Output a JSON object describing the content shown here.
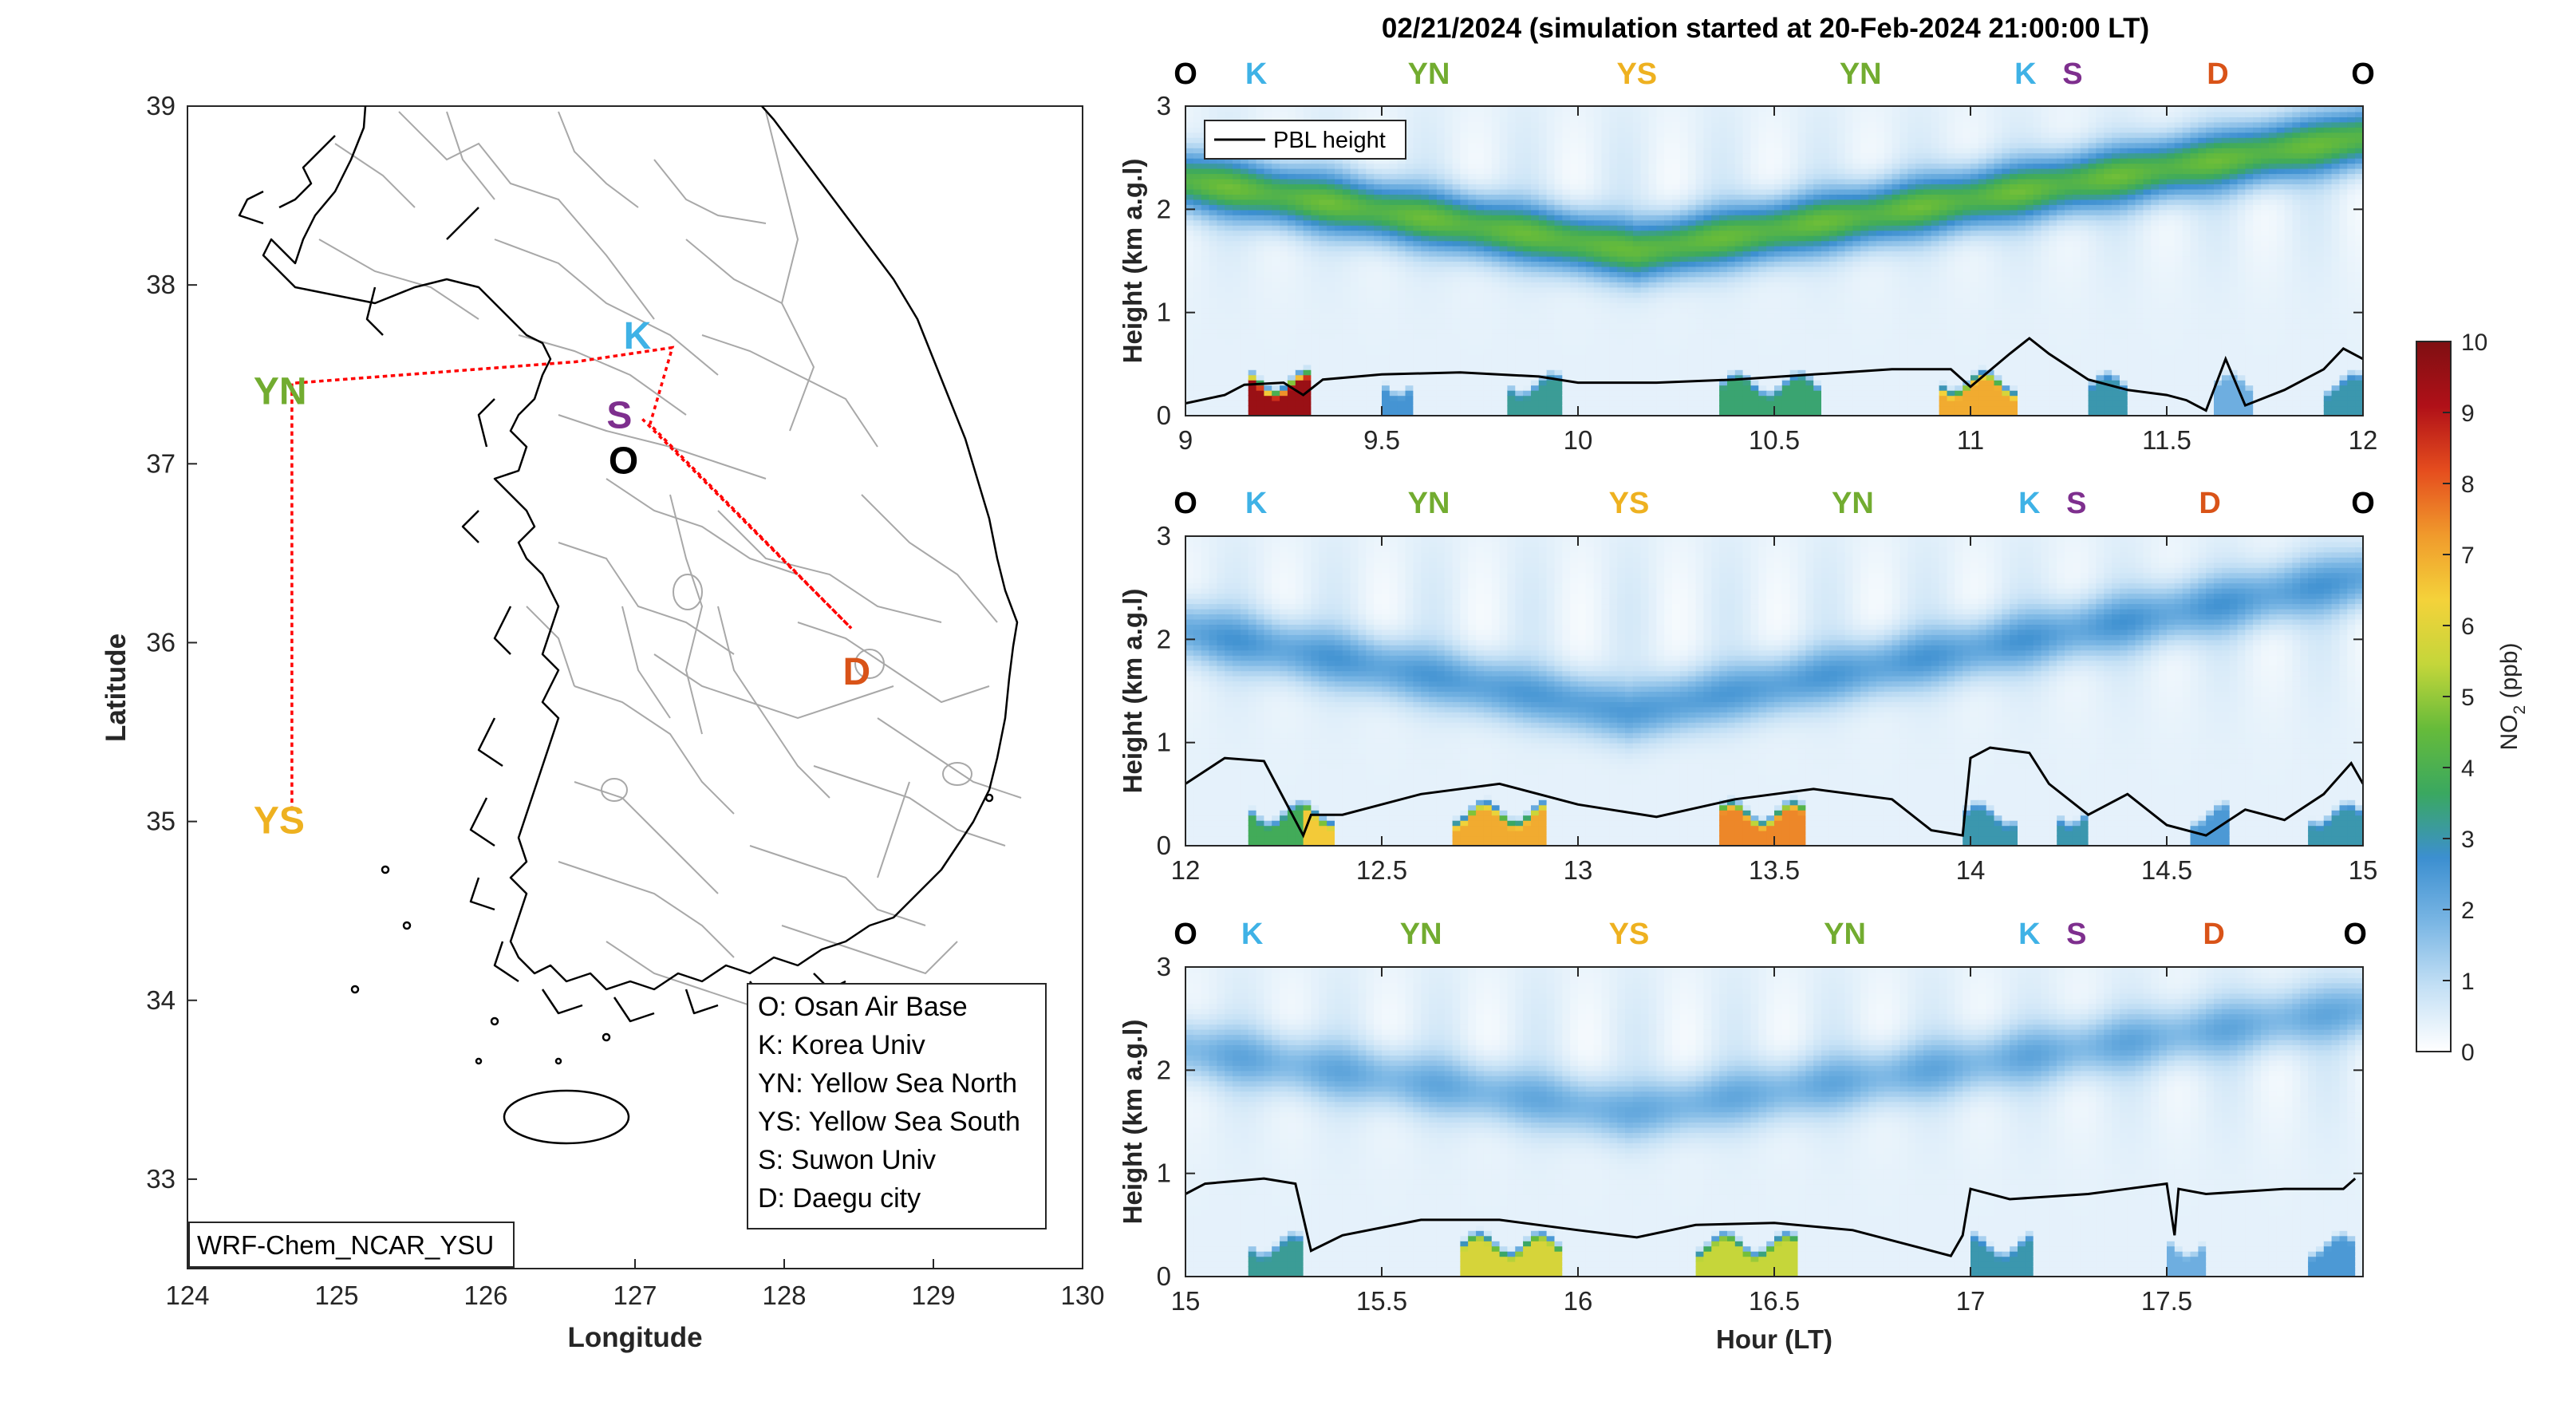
{
  "figure_title": "02/21/2024 (simulation started at 20-Feb-2024 21:00:00 LT)",
  "colors": {
    "O": "#000000",
    "K": "#3fb2e6",
    "S": "#7e2f8e",
    "YN": "#72ac30",
    "YS": "#eeb120",
    "D": "#d95318",
    "flight_track": "#ff0000",
    "coast": "#000000",
    "province_border": "#a0a0a0"
  },
  "map": {
    "xlabel": "Longitude",
    "ylabel": "Latitude",
    "xlim": [
      124,
      130
    ],
    "ylim": [
      32.5,
      39
    ],
    "xticks": [
      "124",
      "125",
      "126",
      "127",
      "128",
      "129",
      "130"
    ],
    "yticks": [
      "33",
      "34",
      "35",
      "36",
      "37",
      "38",
      "39"
    ],
    "model_label": "WRF-Chem_NCAR_YSU",
    "sites": [
      {
        "key": "O",
        "label": "O",
        "lon": 126.93,
        "lat": 37.08
      },
      {
        "key": "K",
        "label": "K",
        "lon": 127.03,
        "lat": 37.59
      },
      {
        "key": "S",
        "label": "S",
        "lon": 126.97,
        "lat": 37.28
      },
      {
        "key": "YN",
        "label": "YN",
        "lon": 124.55,
        "lat": 37.45
      },
      {
        "key": "YS",
        "label": "YS",
        "lon": 124.55,
        "lat": 35.05
      },
      {
        "key": "D",
        "label": "D",
        "lon": 128.5,
        "lat": 35.9
      }
    ],
    "legend": [
      "O: Osan Air Base",
      "K: Korea Univ",
      "YN: Yellow Sea North",
      "YS: Yellow Sea South",
      "S: Suwon Univ",
      "D: Daegu city"
    ],
    "flight_track": [
      [
        127.25,
        37.65
      ],
      [
        126.6,
        37.57
      ],
      [
        124.7,
        37.45
      ],
      [
        124.7,
        35.05
      ],
      [
        124.7,
        37.45
      ],
      [
        126.6,
        37.57
      ],
      [
        127.25,
        37.65
      ],
      [
        127.1,
        37.22
      ],
      [
        128.45,
        36.08
      ],
      [
        127.05,
        37.25
      ]
    ]
  },
  "chart_data": [
    {
      "type": "heatmap",
      "title": "",
      "xlabel": "",
      "ylabel": "Height (km a.g.l)",
      "xlim": [
        9,
        12
      ],
      "ylim": [
        0,
        3
      ],
      "xticks": [
        "9",
        "9.5",
        "10",
        "10.5",
        "11",
        "11.5",
        "12"
      ],
      "yticks": [
        "0",
        "1",
        "2",
        "3"
      ],
      "legend": "PBL height",
      "legend_position": "top-left",
      "site_markers": [
        {
          "key": "O",
          "label": "O",
          "x": 9.0
        },
        {
          "key": "K",
          "label": "K",
          "x": 9.18
        },
        {
          "key": "YN",
          "label": "YN",
          "x": 9.62
        },
        {
          "key": "YS",
          "label": "YS",
          "x": 10.15
        },
        {
          "key": "YN",
          "label": "YN",
          "x": 10.72
        },
        {
          "key": "K",
          "label": "K",
          "x": 11.14
        },
        {
          "key": "S",
          "label": "S",
          "x": 11.26
        },
        {
          "key": "D",
          "label": "D",
          "x": 11.63
        },
        {
          "key": "O",
          "label": "O",
          "x": 12.0
        }
      ],
      "upper_layer": {
        "edge_height": 2.7,
        "center_height": 1.6,
        "center_x": 10.15,
        "peak_ppb": 4.0
      },
      "surface_plumes": [
        {
          "x0": 9.15,
          "x1": 9.32,
          "ppb": 9.5
        },
        {
          "x0": 9.5,
          "x1": 9.58,
          "ppb": 2.6
        },
        {
          "x0": 9.82,
          "x1": 9.95,
          "ppb": 3.2
        },
        {
          "x0": 10.35,
          "x1": 10.62,
          "ppb": 3.5
        },
        {
          "x0": 10.92,
          "x1": 11.12,
          "ppb": 7.0
        },
        {
          "x0": 11.3,
          "x1": 11.4,
          "ppb": 3.0
        },
        {
          "x0": 11.62,
          "x1": 11.72,
          "ppb": 2.0
        },
        {
          "x0": 11.9,
          "x1": 12.0,
          "ppb": 3.0
        }
      ],
      "pbl_height": {
        "x": [
          9.0,
          9.1,
          9.15,
          9.25,
          9.3,
          9.35,
          9.5,
          9.7,
          9.9,
          10.0,
          10.2,
          10.4,
          10.6,
          10.8,
          10.95,
          11.0,
          11.1,
          11.15,
          11.2,
          11.3,
          11.4,
          11.5,
          11.55,
          11.6,
          11.65,
          11.7,
          11.8,
          11.9,
          11.95,
          12.0
        ],
        "y": [
          0.12,
          0.2,
          0.3,
          0.32,
          0.2,
          0.35,
          0.4,
          0.42,
          0.38,
          0.32,
          0.32,
          0.35,
          0.4,
          0.45,
          0.45,
          0.28,
          0.6,
          0.75,
          0.6,
          0.35,
          0.25,
          0.2,
          0.15,
          0.05,
          0.55,
          0.1,
          0.25,
          0.45,
          0.65,
          0.55
        ]
      }
    },
    {
      "type": "heatmap",
      "title": "",
      "xlabel": "",
      "ylabel": "Height (km a.g.l)",
      "xlim": [
        12,
        15
      ],
      "ylim": [
        0,
        3
      ],
      "xticks": [
        "12",
        "12.5",
        "13",
        "13.5",
        "14",
        "14.5",
        "15"
      ],
      "yticks": [
        "0",
        "1",
        "2",
        "3"
      ],
      "site_markers": [
        {
          "key": "O",
          "label": "O",
          "x": 12.0
        },
        {
          "key": "K",
          "label": "K",
          "x": 12.18
        },
        {
          "key": "YN",
          "label": "YN",
          "x": 12.62
        },
        {
          "key": "YS",
          "label": "YS",
          "x": 13.13
        },
        {
          "key": "YN",
          "label": "YN",
          "x": 13.7
        },
        {
          "key": "K",
          "label": "K",
          "x": 14.15
        },
        {
          "key": "S",
          "label": "S",
          "x": 14.27
        },
        {
          "key": "D",
          "label": "D",
          "x": 14.61
        },
        {
          "key": "O",
          "label": "O",
          "x": 15.0
        }
      ],
      "upper_layer": {
        "edge_height": 2.6,
        "center_height": 1.3,
        "center_x": 13.13,
        "peak_ppb": 2.0
      },
      "surface_plumes": [
        {
          "x0": 12.15,
          "x1": 12.3,
          "ppb": 3.8
        },
        {
          "x0": 12.3,
          "x1": 12.38,
          "ppb": 6.5
        },
        {
          "x0": 12.68,
          "x1": 12.92,
          "ppb": 7.0
        },
        {
          "x0": 13.35,
          "x1": 13.58,
          "ppb": 7.5
        },
        {
          "x0": 13.98,
          "x1": 14.12,
          "ppb": 3.0
        },
        {
          "x0": 14.22,
          "x1": 14.3,
          "ppb": 3.0
        },
        {
          "x0": 14.55,
          "x1": 14.65,
          "ppb": 2.5
        },
        {
          "x0": 14.85,
          "x1": 15.0,
          "ppb": 3.0
        }
      ],
      "pbl_height": {
        "x": [
          12.0,
          12.1,
          12.2,
          12.3,
          12.32,
          12.4,
          12.6,
          12.8,
          13.0,
          13.2,
          13.4,
          13.6,
          13.8,
          13.9,
          13.98,
          14.0,
          14.05,
          14.15,
          14.2,
          14.3,
          14.4,
          14.5,
          14.6,
          14.7,
          14.8,
          14.9,
          14.97,
          15.0
        ],
        "y": [
          0.6,
          0.85,
          0.82,
          0.1,
          0.3,
          0.3,
          0.5,
          0.6,
          0.4,
          0.28,
          0.45,
          0.55,
          0.45,
          0.15,
          0.1,
          0.85,
          0.95,
          0.9,
          0.6,
          0.3,
          0.5,
          0.2,
          0.1,
          0.35,
          0.25,
          0.5,
          0.8,
          0.6
        ]
      }
    },
    {
      "type": "heatmap",
      "title": "",
      "xlabel": "Hour (LT)",
      "ylabel": "Height (km a.g.l)",
      "xlim": [
        15,
        18
      ],
      "ylim": [
        0,
        3
      ],
      "xticks": [
        "15",
        "15.5",
        "16",
        "16.5",
        "17",
        "17.5"
      ],
      "yticks": [
        "0",
        "1",
        "2",
        "3"
      ],
      "site_markers": [
        {
          "key": "O",
          "label": "O",
          "x": 15.0
        },
        {
          "key": "K",
          "label": "K",
          "x": 15.17
        },
        {
          "key": "YN",
          "label": "YN",
          "x": 15.6
        },
        {
          "key": "YS",
          "label": "YS",
          "x": 16.13
        },
        {
          "key": "YN",
          "label": "YN",
          "x": 16.68
        },
        {
          "key": "K",
          "label": "K",
          "x": 17.15
        },
        {
          "key": "S",
          "label": "S",
          "x": 17.27
        },
        {
          "key": "D",
          "label": "D",
          "x": 17.62
        },
        {
          "key": "O",
          "label": "O",
          "x": 17.98
        }
      ],
      "upper_layer": {
        "edge_height": 2.6,
        "center_height": 1.6,
        "center_x": 16.13,
        "peak_ppb": 1.6
      },
      "surface_plumes": [
        {
          "x0": 15.15,
          "x1": 15.3,
          "ppb": 3.2
        },
        {
          "x0": 15.7,
          "x1": 15.95,
          "ppb": 5.8
        },
        {
          "x0": 16.3,
          "x1": 16.55,
          "ppb": 5.5
        },
        {
          "x0": 17.0,
          "x1": 17.15,
          "ppb": 3.0
        },
        {
          "x0": 17.5,
          "x1": 17.6,
          "ppb": 2.0
        },
        {
          "x0": 17.85,
          "x1": 17.98,
          "ppb": 2.5
        }
      ],
      "pbl_height": {
        "x": [
          15.0,
          15.05,
          15.2,
          15.28,
          15.32,
          15.4,
          15.6,
          15.8,
          16.0,
          16.15,
          16.3,
          16.5,
          16.7,
          16.95,
          16.98,
          17.0,
          17.1,
          17.3,
          17.5,
          17.52,
          17.53,
          17.6,
          17.8,
          17.95,
          17.98
        ],
        "y": [
          0.8,
          0.9,
          0.95,
          0.9,
          0.25,
          0.4,
          0.55,
          0.55,
          0.45,
          0.38,
          0.5,
          0.52,
          0.45,
          0.2,
          0.4,
          0.85,
          0.75,
          0.8,
          0.9,
          0.4,
          0.85,
          0.8,
          0.85,
          0.85,
          0.95
        ]
      }
    }
  ],
  "colorbar": {
    "label_main": "NO",
    "label_sub": "2",
    "label_unit": " (ppb)",
    "range": [
      0,
      10
    ],
    "ticks": [
      "0",
      "1",
      "2",
      "3",
      "4",
      "5",
      "6",
      "7",
      "8",
      "9",
      "10"
    ],
    "stops": [
      "#ffffff",
      "#c4e0f5",
      "#7ab6e4",
      "#3c8fd0",
      "#3aa860",
      "#66bb3a",
      "#c4d63a",
      "#f4d23a",
      "#f09a2c",
      "#e54d1e",
      "#b01018",
      "#7f0f12"
    ]
  }
}
